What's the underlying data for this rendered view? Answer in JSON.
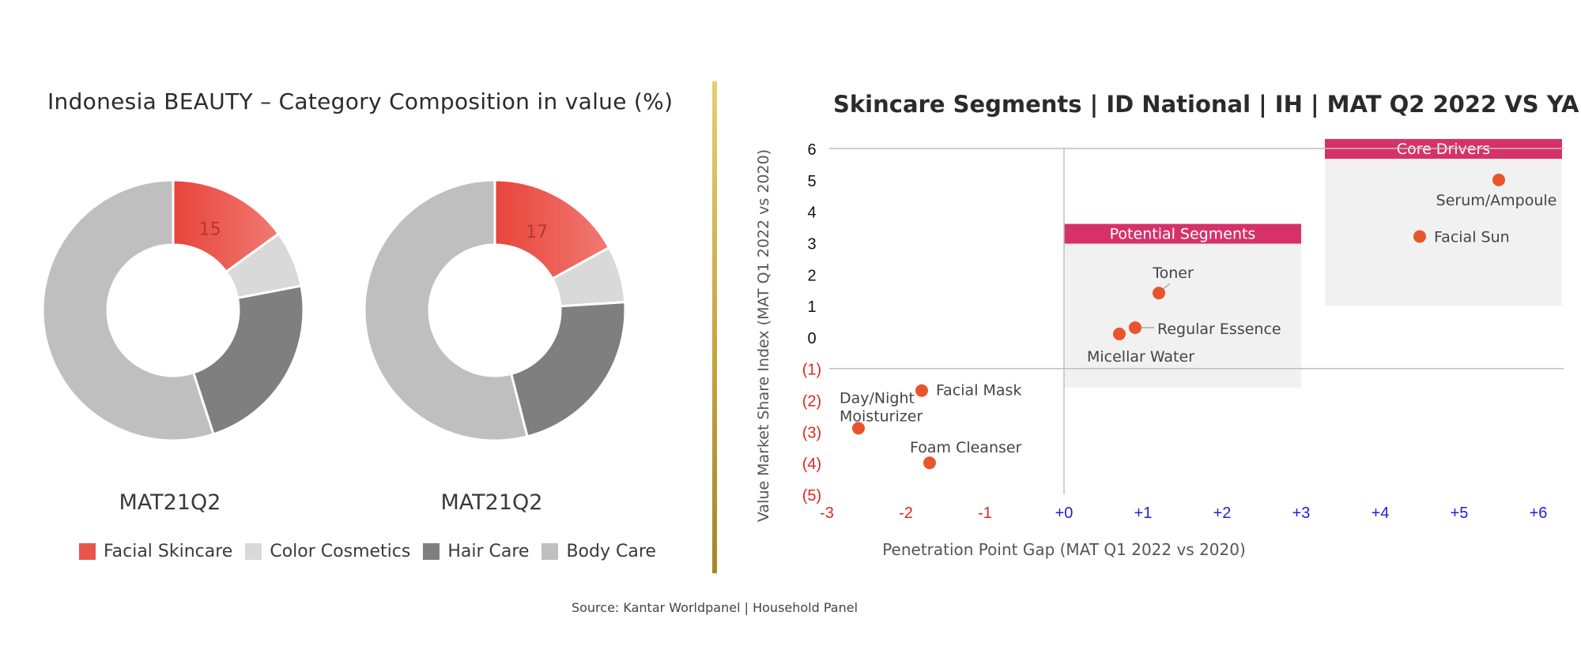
{
  "left_title": "Indonesia BEAUTY – Category Composition in value  (%)",
  "right_title": "Skincare Segments | ID National | IH | MAT Q2 2022 VS YA",
  "source": "Source: Kantar Worldpanel | Household Panel",
  "legend": [
    {
      "label": "Facial Skincare",
      "color": "#e8443a"
    },
    {
      "label": "Color Cosmetics",
      "color": "#d9d9d9"
    },
    {
      "label": "Hair Care",
      "color": "#7f7f7f"
    },
    {
      "label": "Body Care",
      "color": "#bfbfbf"
    }
  ],
  "chart_data": [
    {
      "type": "pie",
      "variant": "donut",
      "label": "MAT21Q2",
      "categories": [
        "Facial Skincare",
        "Color Cosmetics",
        "Hair Care",
        "Body Care"
      ],
      "values": [
        15,
        7,
        23,
        55
      ],
      "data_labels": [
        "15",
        "",
        "",
        ""
      ]
    },
    {
      "type": "pie",
      "variant": "donut",
      "label": "MAT21Q2",
      "categories": [
        "Facial Skincare",
        "Color Cosmetics",
        "Hair Care",
        "Body Care"
      ],
      "values": [
        17,
        7,
        22,
        54
      ],
      "data_labels": [
        "17",
        "",
        "",
        ""
      ]
    },
    {
      "type": "scatter",
      "title": "Skincare Segments | ID National | IH | MAT Q2 2022 VS YA",
      "xlabel": "Penetration Point Gap (MAT Q1 2022 vs 2020)",
      "ylabel": "Value Market Share Index (MAT Q1 2022 vs 2020)",
      "xlim": [
        -3,
        6
      ],
      "ylim": [
        -5,
        6
      ],
      "x_ticks": [
        "-3",
        "-2",
        "-1",
        "+0",
        "+1",
        "+2",
        "+3",
        "+4",
        "+5",
        "+6"
      ],
      "y_ticks": [
        "6",
        "5",
        "4",
        "3",
        "2",
        "1",
        "0",
        "(1)",
        "(2)",
        "(3)",
        "(4)",
        "(5)"
      ],
      "points": [
        {
          "name": "Serum/Ampoule",
          "x": 5.5,
          "y": 5.0
        },
        {
          "name": "Facial Sun",
          "x": 4.5,
          "y": 3.2
        },
        {
          "name": "Toner",
          "x": 1.2,
          "y": 1.4
        },
        {
          "name": "Regular Essence",
          "x": 0.9,
          "y": 0.3
        },
        {
          "name": "Micellar Water",
          "x": 0.7,
          "y": 0.1
        },
        {
          "name": "Facial Mask",
          "x": -1.8,
          "y": -1.7
        },
        {
          "name": "Day/Night\nMoisturizer",
          "x": -2.6,
          "y": -2.9
        },
        {
          "name": "Foam Cleanser",
          "x": -1.7,
          "y": -4.0
        }
      ],
      "quadrants": [
        {
          "label": "Potential Segments",
          "x": [
            0,
            3
          ],
          "y": [
            -1.6,
            3.6
          ]
        },
        {
          "label": "Core Drivers",
          "x": [
            3.3,
            6.3
          ],
          "y": [
            1.0,
            6.3
          ]
        }
      ],
      "colors": {
        "point": "#e8552d",
        "banner": "#d63269",
        "box": "#f1f1f1",
        "neg_tick": "#e0261f",
        "pos_tick": "#1f1fd6"
      }
    }
  ]
}
